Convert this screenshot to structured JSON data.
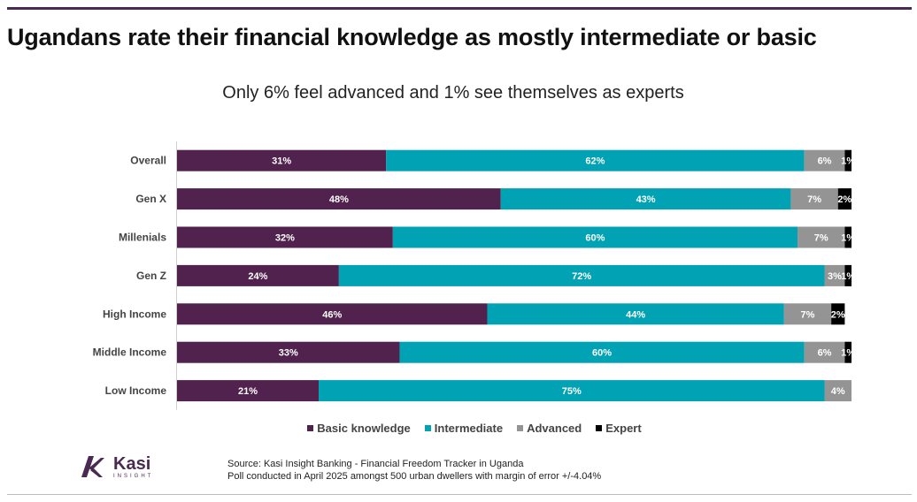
{
  "header": {
    "title": "Ugandans rate their financial knowledge as mostly intermediate or basic",
    "subtitle": "Only 6% feel advanced and 1% see themselves as experts"
  },
  "chart_data": {
    "type": "bar",
    "orientation": "horizontal",
    "stacked": true,
    "xlim": [
      0,
      100
    ],
    "grid": false,
    "legend_position": "bottom",
    "categories": [
      "Overall",
      "Gen X",
      "Millenials",
      "Gen Z",
      "High Income",
      "Middle Income",
      "Low Income"
    ],
    "series": [
      {
        "name": "Basic knowledge",
        "color": "#52224f",
        "values": [
          31,
          48,
          32,
          24,
          46,
          33,
          21
        ],
        "labels": [
          "31%",
          "48%",
          "32%",
          "24%",
          "46%",
          "33%",
          "21%"
        ]
      },
      {
        "name": "Intermediate",
        "color": "#00a2b3",
        "values": [
          62,
          43,
          60,
          72,
          44,
          60,
          75
        ],
        "labels": [
          "62%",
          "43%",
          "60%",
          "72%",
          "44%",
          "60%",
          "75%"
        ]
      },
      {
        "name": "Advanced",
        "color": "#949494",
        "values": [
          6,
          7,
          7,
          3,
          7,
          6,
          4
        ],
        "labels": [
          "6%",
          "7%",
          "7%",
          "3%",
          "7%",
          "6%",
          "4%"
        ]
      },
      {
        "name": "Expert",
        "color": "#000000",
        "values": [
          1,
          2,
          1,
          1,
          2,
          1,
          0
        ],
        "labels": [
          "1%",
          "2%",
          "1%",
          "1%",
          "2%",
          "1%",
          ""
        ]
      }
    ]
  },
  "footer": {
    "logo_name": "Kasi",
    "logo_sub": "INSIGHT",
    "source_line1": "Source: Kasi Insight Banking - Financial Freedom Tracker  in Uganda",
    "source_line2": "Poll conducted  in April 2025 amongst 500 urban dwellers with margin of error +/-4.04%"
  }
}
